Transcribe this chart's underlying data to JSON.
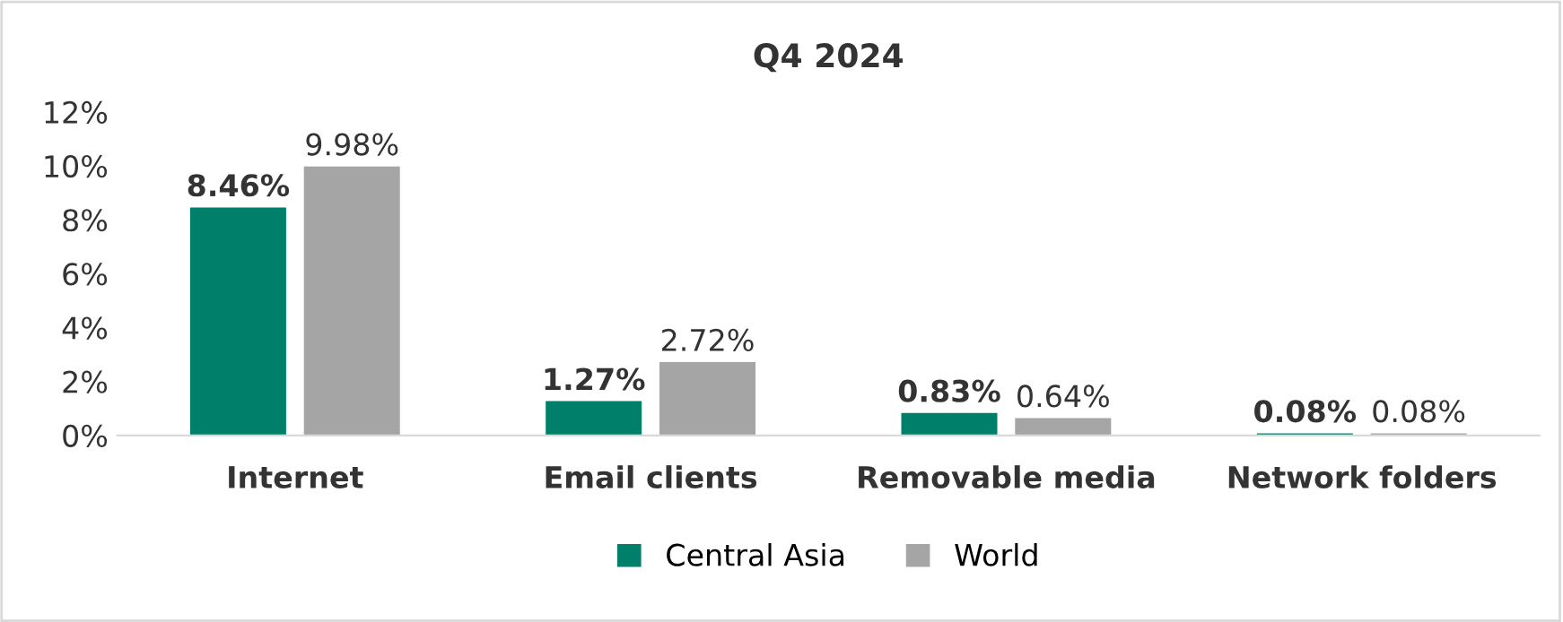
{
  "chart_data": {
    "type": "bar",
    "title": "Q4 2024",
    "categories": [
      "Internet",
      "Email clients",
      "Removable media",
      "Network folders"
    ],
    "series": [
      {
        "name": "Central Asia",
        "color": "#00806a",
        "values": [
          8.46,
          1.27,
          0.83,
          0.08
        ],
        "value_labels": [
          "8.46%",
          "1.27%",
          "0.83%",
          "0.08%"
        ]
      },
      {
        "name": "World",
        "color": "#a5a5a5",
        "values": [
          9.98,
          2.72,
          0.64,
          0.08
        ],
        "value_labels": [
          "9.98%",
          "2.72%",
          "0.64%",
          "0.08%"
        ]
      }
    ],
    "ylim": [
      0,
      12
    ],
    "yticks": [
      {
        "value": 0,
        "label": "0%"
      },
      {
        "value": 2,
        "label": "2%"
      },
      {
        "value": 4,
        "label": "4%"
      },
      {
        "value": 6,
        "label": "6%"
      },
      {
        "value": 8,
        "label": "8%"
      },
      {
        "value": 10,
        "label": "10%"
      },
      {
        "value": 12,
        "label": "12%"
      }
    ],
    "grid": false,
    "legend": "bottom"
  }
}
